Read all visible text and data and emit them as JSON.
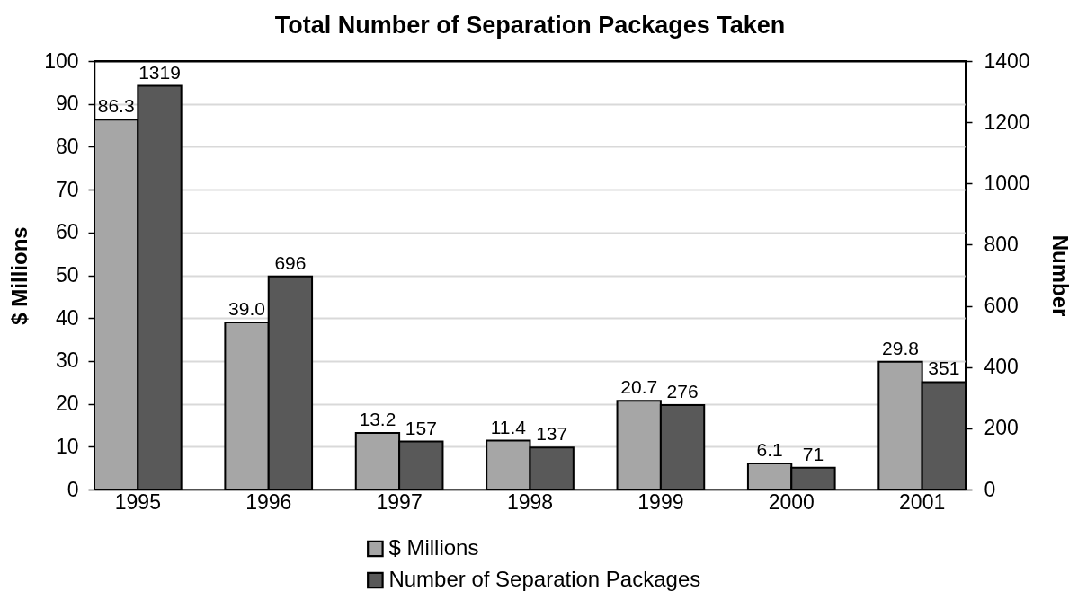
{
  "chart_data": {
    "type": "bar",
    "title": "Total Number of Separation Packages Taken",
    "ylabel": "$ Millions",
    "y2label": "Number",
    "categories": [
      "1995",
      "1996",
      "1997",
      "1998",
      "1999",
      "2000",
      "2001"
    ],
    "series": [
      {
        "name": "$ Millions",
        "color": "#a6a6a6",
        "values": [
          86.3,
          39.0,
          13.2,
          11.4,
          20.7,
          6.1,
          29.8
        ],
        "value_labels": [
          "86.3",
          "39.0",
          "13.2",
          "11.4",
          "20.7",
          "6.1",
          "29.8"
        ]
      },
      {
        "name": "Number of Separation Packages",
        "color": "#595959",
        "axis": "y2",
        "values": [
          1319,
          696,
          157,
          137,
          276,
          71,
          351
        ],
        "value_labels": [
          "1319",
          "696",
          "157",
          "137",
          "276",
          "71",
          "351"
        ]
      }
    ],
    "ylim": [
      0,
      100
    ],
    "yticks": [
      0,
      10,
      20,
      30,
      40,
      50,
      60,
      70,
      80,
      90,
      100
    ],
    "y2lim": [
      0,
      1400
    ],
    "y2ticks": [
      0,
      200,
      400,
      600,
      800,
      1000,
      1200,
      1400
    ],
    "grid": "y",
    "legend": "bottom"
  }
}
